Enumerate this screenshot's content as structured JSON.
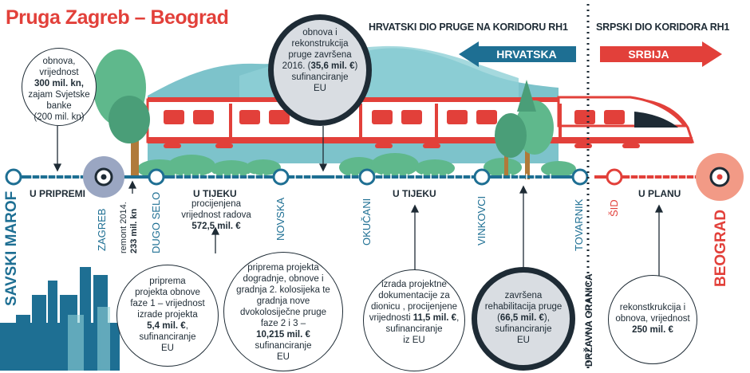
{
  "title": "Pruga Zagreb – Beograd",
  "sections": {
    "croatian": "HRVATSKI DIO PRUGE NA KORIDORU RH1",
    "serbian": "SRPSKI DIO KORIDORA RH1"
  },
  "arrows": {
    "left": "HRVATSKA",
    "right": "SRBIJA"
  },
  "stations": {
    "savski_marof": "SAVSKI MAROF",
    "zagreb": "ZAGREB",
    "dugo_selo": "DUGO SELO",
    "novska": "NOVSKA",
    "okucani": "OKUČANI",
    "vinkovci": "VINKOVCI",
    "tovarnik": "TOVARNIK",
    "sid": "ŠID",
    "beograd": "BEOGRAD",
    "border": "DRŽAVNA GRANICA"
  },
  "statuses": {
    "u_pripremi": "U PRIPREMI",
    "u_tijeku_1": "U TIJEKU",
    "u_tijeku_2": "U TIJEKU",
    "u_planu": "U PLANU"
  },
  "remont": {
    "line1": "remont 2014.",
    "line2": "233 mil. kn"
  },
  "notes": {
    "savski": {
      "l1": "obnova,",
      "l2": "vrijednost",
      "l3": "300 mil. kn,",
      "l4": "zajam Svjetske",
      "l5": "banke",
      "l6": "(200 mil. kn)"
    },
    "top": {
      "l1": "obnova i",
      "l2": "rekonstrukcija",
      "l3a": "pruge završena",
      "l3b": "2016. (",
      "l3c": "35,6 mil. €",
      "l3d": ")",
      "l4": "sufinanciranje",
      "l5": "EU"
    },
    "dugo_selo": {
      "l1": "procijenjena",
      "l2": "vrijednost radova",
      "l3": "572,5 mil. €"
    },
    "zagreb_prep": {
      "l1": "priprema",
      "l2": "projekta obnove",
      "l3": "faze 1 – vrijednost",
      "l4": "izrade projekta",
      "l5": "5,4 mil. €",
      "l5b": ",",
      "l6": "sufinanciranje",
      "l7": "EU"
    },
    "novska_prep": {
      "l1": "priprema projekta",
      "l2": "dogradnje, obnove i",
      "l3": "gradnja 2. kolosijeka te",
      "l4": "gradnja nove",
      "l5": "dvokolosiječne pruge",
      "l6": "faze 2 i 3 –",
      "l7": "10,215 mil. €",
      "l8": "sufinanciranje",
      "l9": "EU"
    },
    "okucani": {
      "l1": "izrada projektne",
      "l2": "dokumentacije za",
      "l3": "dionicu , procijenjene",
      "l4a": "vrijednosti ",
      "l4b": "11,5 mil. €",
      "l4c": ",",
      "l5": "sufinanciranje",
      "l6": "iz EU"
    },
    "vinkovci": {
      "l1": "završena",
      "l2": "rehabilitacija pruge",
      "l3a": "(",
      "l3b": "66,5 mil. €",
      "l3c": "),",
      "l4": "sufinanciranje",
      "l5": "EU"
    },
    "serbia": {
      "l1": "rekonstkrukcija i",
      "l2": "obnova, vrijednost",
      "l3": "250 mil. €"
    }
  },
  "colors": {
    "title_red": "#e2403a",
    "line_blue": "#1e6f93",
    "dark": "#1e2b35",
    "green": "#5fb88c",
    "sky": "#7fc3cd",
    "serbia_red": "#e2403a"
  }
}
